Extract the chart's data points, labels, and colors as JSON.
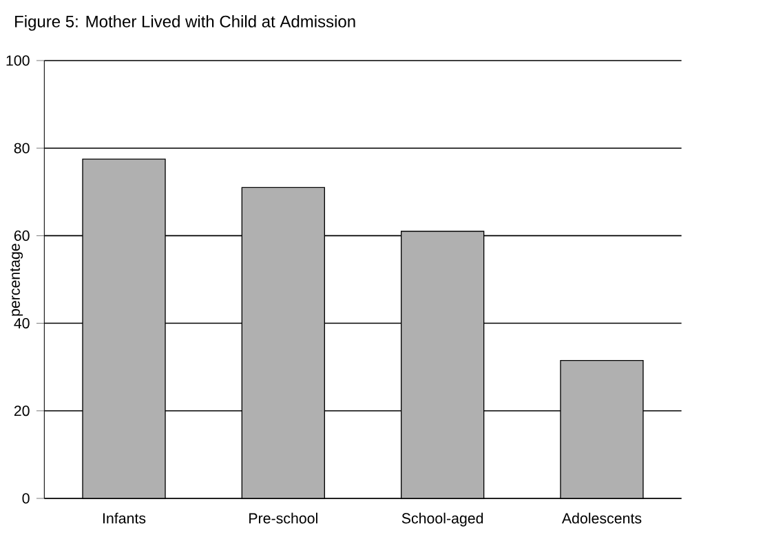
{
  "chart_data": {
    "type": "bar",
    "title": "Figure 5: Mother Lived with Child at Admission",
    "ylabel": "percentage",
    "categories": [
      "Infants",
      "Pre-school",
      "School-aged",
      "Adolescents"
    ],
    "values": [
      77.5,
      71,
      61,
      31.5
    ],
    "color": "#b0b0b0",
    "ylim": [
      0,
      100
    ],
    "yticks": [
      0,
      20,
      40,
      60,
      80,
      100
    ],
    "grid": "y"
  }
}
